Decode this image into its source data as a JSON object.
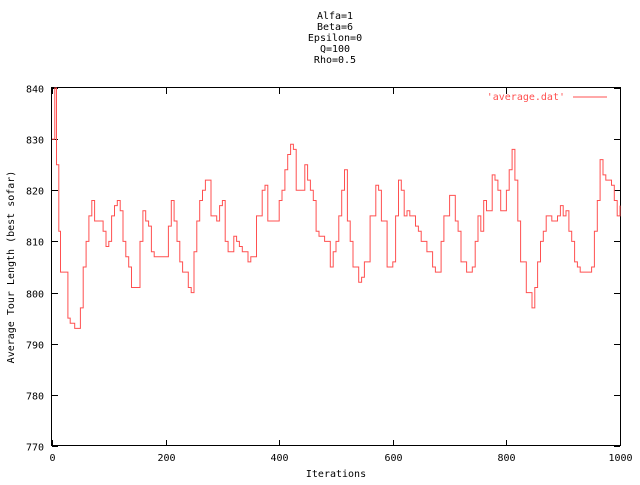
{
  "chart_data": {
    "type": "line",
    "title_lines": [
      "Alfa=1",
      "Beta=6",
      "Epsilon=0",
      "Q=100",
      "Rho=0.5"
    ],
    "xlabel": "Iterations",
    "ylabel": "Average Tour Length (best sofar)",
    "xlim": [
      0,
      1000
    ],
    "ylim": [
      770,
      840
    ],
    "xticks": [
      0,
      200,
      400,
      600,
      800,
      1000
    ],
    "yticks": [
      770,
      780,
      790,
      800,
      810,
      820,
      830,
      840
    ],
    "grid": false,
    "legend_position": "top-right",
    "series": [
      {
        "name": "'average.dat'",
        "color": "#ff5050",
        "x": [
          0,
          5,
          8,
          12,
          15,
          20,
          28,
          32,
          35,
          40,
          50,
          55,
          60,
          65,
          70,
          75,
          80,
          90,
          95,
          100,
          105,
          110,
          115,
          120,
          125,
          130,
          135,
          140,
          148,
          155,
          160,
          165,
          170,
          175,
          180,
          190,
          200,
          205,
          210,
          215,
          220,
          225,
          230,
          240,
          245,
          250,
          255,
          260,
          265,
          270,
          280,
          290,
          295,
          300,
          305,
          310,
          320,
          325,
          330,
          335,
          340,
          345,
          350,
          360,
          370,
          375,
          380,
          395,
          400,
          405,
          410,
          415,
          420,
          425,
          430,
          440,
          445,
          450,
          455,
          460,
          465,
          470,
          480,
          490,
          495,
          500,
          505,
          510,
          515,
          520,
          525,
          530,
          540,
          545,
          550,
          560,
          570,
          575,
          580,
          590,
          600,
          605,
          610,
          615,
          620,
          625,
          630,
          640,
          645,
          650,
          660,
          670,
          675,
          680,
          685,
          690,
          700,
          710,
          715,
          720,
          730,
          740,
          745,
          750,
          755,
          760,
          765,
          775,
          780,
          785,
          790,
          800,
          805,
          810,
          815,
          820,
          825,
          835,
          845,
          850,
          855,
          860,
          865,
          870,
          880,
          890,
          895,
          900,
          905,
          910,
          915,
          920,
          925,
          930,
          940,
          950,
          955,
          960,
          965,
          970,
          975,
          985,
          990,
          995,
          1000
        ],
        "values": [
          830,
          840,
          825,
          812,
          804,
          804,
          795,
          794,
          794,
          793,
          797,
          805,
          810,
          815,
          818,
          814,
          814,
          812,
          809,
          810,
          815,
          817,
          818,
          816,
          810,
          807,
          805,
          801,
          801,
          810,
          816,
          814,
          813,
          808,
          807,
          807,
          807,
          813,
          818,
          814,
          810,
          806,
          804,
          801,
          800,
          808,
          814,
          818,
          820,
          822,
          815,
          814,
          817,
          818,
          810,
          808,
          811,
          810,
          809,
          808,
          808,
          806,
          807,
          815,
          820,
          821,
          814,
          814,
          818,
          820,
          824,
          827,
          829,
          828,
          820,
          820,
          825,
          822,
          820,
          818,
          812,
          811,
          810,
          805,
          808,
          810,
          815,
          820,
          824,
          814,
          810,
          805,
          802,
          803,
          806,
          815,
          821,
          820,
          814,
          805,
          806,
          815,
          822,
          820,
          815,
          816,
          815,
          813,
          812,
          810,
          808,
          805,
          804,
          804,
          810,
          815,
          819,
          814,
          812,
          806,
          804,
          805,
          810,
          815,
          812,
          818,
          816,
          823,
          822,
          820,
          816,
          820,
          824,
          828,
          822,
          814,
          806,
          800,
          797,
          801,
          806,
          810,
          812,
          815,
          814,
          815,
          817,
          815,
          816,
          812,
          810,
          806,
          805,
          804,
          804,
          805,
          812,
          818,
          826,
          823,
          822,
          821,
          818,
          815,
          817
        ]
      }
    ]
  }
}
